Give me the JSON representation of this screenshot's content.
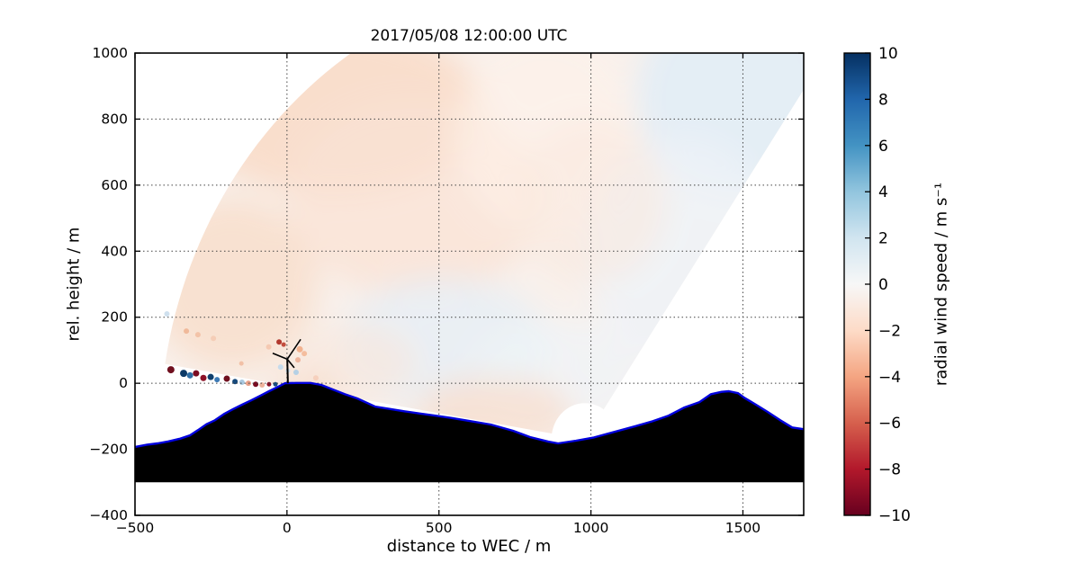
{
  "chart_data": {
    "type": "heatmap",
    "title": "2017/05/08 12:00:00 UTC",
    "xlabel": "distance to WEC / m",
    "ylabel": "rel. height / m",
    "axes": {
      "xlim": [
        -500,
        1700
      ],
      "ylim": [
        -400,
        1000
      ],
      "xticks": {
        "values": [
          -500,
          0,
          500,
          1000,
          1500
        ],
        "labels": [
          "−500",
          "0",
          "500",
          "1000",
          "1500"
        ]
      },
      "yticks": {
        "values": [
          -400,
          -200,
          0,
          200,
          400,
          600,
          800,
          1000
        ],
        "labels": [
          "−400",
          "−200",
          "0",
          "200",
          "400",
          "600",
          "800",
          "1000"
        ]
      },
      "grid": true,
      "grid_style": "dotted",
      "grid_color": "#444444",
      "frame_color": "#000000",
      "background": "#ffffff"
    },
    "colorbar": {
      "label": "radial wind speed / m s⁻¹",
      "min": -10,
      "max": 10,
      "tick_values": [
        10,
        8,
        6,
        4,
        2,
        0,
        -2,
        -4,
        -6,
        -8,
        -10
      ],
      "tick_labels": [
        "10",
        "8",
        "6",
        "4",
        "2",
        "0",
        "−2",
        "−4",
        "−6",
        "−8",
        "−10"
      ],
      "colormap": "RdBu",
      "stops_top_to_bottom": [
        "#053061",
        "#2166ac",
        "#4393c3",
        "#92c5de",
        "#d1e5f0",
        "#f7f7f7",
        "#fddbc7",
        "#f4a582",
        "#d6604d",
        "#b2182b",
        "#67001f"
      ]
    },
    "scan": {
      "description": "lidar RHI scan fan of radial wind speed, values mostly between -2 and +2 m/s",
      "origin": [
        980,
        -170
      ],
      "r_min": 110,
      "r_max": 1400,
      "angle_start_deg": 170.6,
      "angle_end_deg": 55.8,
      "base_color": "#f9f1ec",
      "washes": [
        {
          "c": [
            150,
            830
          ],
          "r": [
            500,
            260
          ],
          "fill": "#f8dbc9",
          "opacity": 0.9
        },
        {
          "c": [
            420,
            560
          ],
          "r": [
            420,
            300
          ],
          "fill": "#f9e2d4",
          "opacity": 0.75
        },
        {
          "c": [
            -180,
            300
          ],
          "r": [
            280,
            260
          ],
          "fill": "#f8ddcb",
          "opacity": 0.8
        },
        {
          "c": [
            850,
            750
          ],
          "r": [
            300,
            300
          ],
          "fill": "#fdf2ea",
          "opacity": 0.6
        },
        {
          "c": [
            1480,
            870
          ],
          "r": [
            330,
            300
          ],
          "fill": "#e3edf5",
          "opacity": 0.95
        },
        {
          "c": [
            1300,
            400
          ],
          "r": [
            320,
            350
          ],
          "fill": "#edf3f7",
          "opacity": 0.8
        },
        {
          "c": [
            520,
            120
          ],
          "r": [
            350,
            200
          ],
          "fill": "#e8eff5",
          "opacity": 0.85
        },
        {
          "c": [
            900,
            30
          ],
          "r": [
            280,
            160
          ],
          "fill": "#eef4f8",
          "opacity": 0.7
        },
        {
          "c": [
            680,
            -90
          ],
          "r": [
            260,
            110
          ],
          "fill": "#f7ddcd",
          "opacity": 0.75
        },
        {
          "c": [
            220,
            60
          ],
          "r": [
            200,
            120
          ],
          "fill": "#f9e6da",
          "opacity": 0.6
        },
        {
          "c": [
            1000,
            550
          ],
          "r": [
            250,
            250
          ],
          "fill": "#f9e8dc",
          "opacity": 0.5
        },
        {
          "c": [
            60,
            -20
          ],
          "r": [
            120,
            60
          ],
          "fill": "#f6d8c6",
          "opacity": 0.6
        }
      ],
      "speckles": [
        {
          "p": [
            -382,
            41
          ],
          "color": "#70101f",
          "r": 4.0
        },
        {
          "p": [
            -340,
            30
          ],
          "color": "#0d3a66",
          "r": 4.0
        },
        {
          "p": [
            -319,
            24
          ],
          "color": "#2e6da4",
          "r": 3.5
        },
        {
          "p": [
            -299,
            30
          ],
          "color": "#7a0c22",
          "r": 3.5
        },
        {
          "p": [
            -275,
            16
          ],
          "color": "#8c1127",
          "r": 3.5
        },
        {
          "p": [
            -251,
            19
          ],
          "color": "#11406e",
          "r": 3.5
        },
        {
          "p": [
            -230,
            11
          ],
          "color": "#3d7ab5",
          "r": 3.0
        },
        {
          "p": [
            -198,
            14
          ],
          "color": "#70101f",
          "r": 3.5
        },
        {
          "p": [
            -171,
            5
          ],
          "color": "#174a7c",
          "r": 3.0
        },
        {
          "p": [
            -148,
            3
          ],
          "color": "#a8c8e0",
          "r": 3.0
        },
        {
          "p": [
            -127,
            0
          ],
          "color": "#e8a088",
          "r": 3.0
        },
        {
          "p": [
            -103,
            -3
          ],
          "color": "#7a0c22",
          "r": 3.0
        },
        {
          "p": [
            -82,
            -5
          ],
          "color": "#eeb49c",
          "r": 3.0
        },
        {
          "p": [
            -59,
            -3
          ],
          "color": "#8c1127",
          "r": 2.5
        },
        {
          "p": [
            -38,
            -3
          ],
          "color": "#1b4e7f",
          "r": 2.5
        },
        {
          "p": [
            -331,
            158
          ],
          "color": "#f0b99a",
          "r": 3.0
        },
        {
          "p": [
            -293,
            147
          ],
          "color": "#f3c3a8",
          "r": 3.0
        },
        {
          "p": [
            -395,
            210
          ],
          "color": "#cfe0ee",
          "r": 3.0
        },
        {
          "p": [
            -242,
            136
          ],
          "color": "#f5cdb6",
          "r": 3.0
        },
        {
          "p": [
            -150,
            60
          ],
          "color": "#f1c0a6",
          "r": 2.5
        },
        {
          "p": [
            -26,
            125
          ],
          "color": "#b2382e",
          "r": 3.0
        },
        {
          "p": [
            -11,
            117
          ],
          "color": "#c24e3f",
          "r": 2.5
        },
        {
          "p": [
            42,
            103
          ],
          "color": "#f2b28f",
          "r": 3.5
        },
        {
          "p": [
            57,
            90
          ],
          "color": "#f4bd9e",
          "r": 3.0
        },
        {
          "p": [
            36,
            71
          ],
          "color": "#eeb49c",
          "r": 3.0
        },
        {
          "p": [
            -60,
            110
          ],
          "color": "#f5c9b2",
          "r": 3.0
        },
        {
          "p": [
            -21,
            49
          ],
          "color": "#c6dbec",
          "r": 3.0
        },
        {
          "p": [
            3,
            38
          ],
          "color": "#cfe0ee",
          "r": 2.5
        },
        {
          "p": [
            30,
            33
          ],
          "color": "#b5d0e5",
          "r": 3.0
        },
        {
          "p": [
            95,
            16
          ],
          "color": "#f6d0bd",
          "r": 3.0
        }
      ]
    },
    "terrain": {
      "profile": [
        [
          -500,
          -193
        ],
        [
          -460,
          -186
        ],
        [
          -426,
          -182
        ],
        [
          -390,
          -176
        ],
        [
          -352,
          -168
        ],
        [
          -320,
          -158
        ],
        [
          -293,
          -142
        ],
        [
          -265,
          -124
        ],
        [
          -237,
          -112
        ],
        [
          -205,
          -92
        ],
        [
          -178,
          -79
        ],
        [
          -148,
          -65
        ],
        [
          -118,
          -52
        ],
        [
          -88,
          -38
        ],
        [
          -59,
          -24
        ],
        [
          -30,
          -11
        ],
        [
          -6,
          0
        ],
        [
          30,
          1
        ],
        [
          77,
          1
        ],
        [
          113,
          -5
        ],
        [
          151,
          -19
        ],
        [
          190,
          -33
        ],
        [
          231,
          -46
        ],
        [
          291,
          -71
        ],
        [
          340,
          -78
        ],
        [
          388,
          -85
        ],
        [
          440,
          -92
        ],
        [
          486,
          -98
        ],
        [
          540,
          -105
        ],
        [
          587,
          -112
        ],
        [
          670,
          -125
        ],
        [
          744,
          -144
        ],
        [
          800,
          -163
        ],
        [
          860,
          -177
        ],
        [
          892,
          -182
        ],
        [
          951,
          -174
        ],
        [
          1010,
          -164
        ],
        [
          1078,
          -147
        ],
        [
          1143,
          -131
        ],
        [
          1203,
          -115
        ],
        [
          1256,
          -98
        ],
        [
          1306,
          -74
        ],
        [
          1357,
          -57
        ],
        [
          1395,
          -33
        ],
        [
          1430,
          -26
        ],
        [
          1454,
          -24
        ],
        [
          1484,
          -30
        ],
        [
          1505,
          -44
        ],
        [
          1543,
          -65
        ],
        [
          1582,
          -87
        ],
        [
          1623,
          -112
        ],
        [
          1662,
          -134
        ],
        [
          1700,
          -139
        ]
      ],
      "fill_to": -300,
      "fill_color": "#000000",
      "line_color": "#0000dd",
      "line_width": 2.4
    },
    "turbine": {
      "tower": [
        [
          3,
          0
        ],
        [
          1,
          73
        ]
      ],
      "hub": [
        1,
        73
      ],
      "blades": [
        [
          45,
          133
        ],
        [
          -47,
          91
        ],
        [
          24,
          47
        ]
      ],
      "color": "#000000"
    }
  }
}
